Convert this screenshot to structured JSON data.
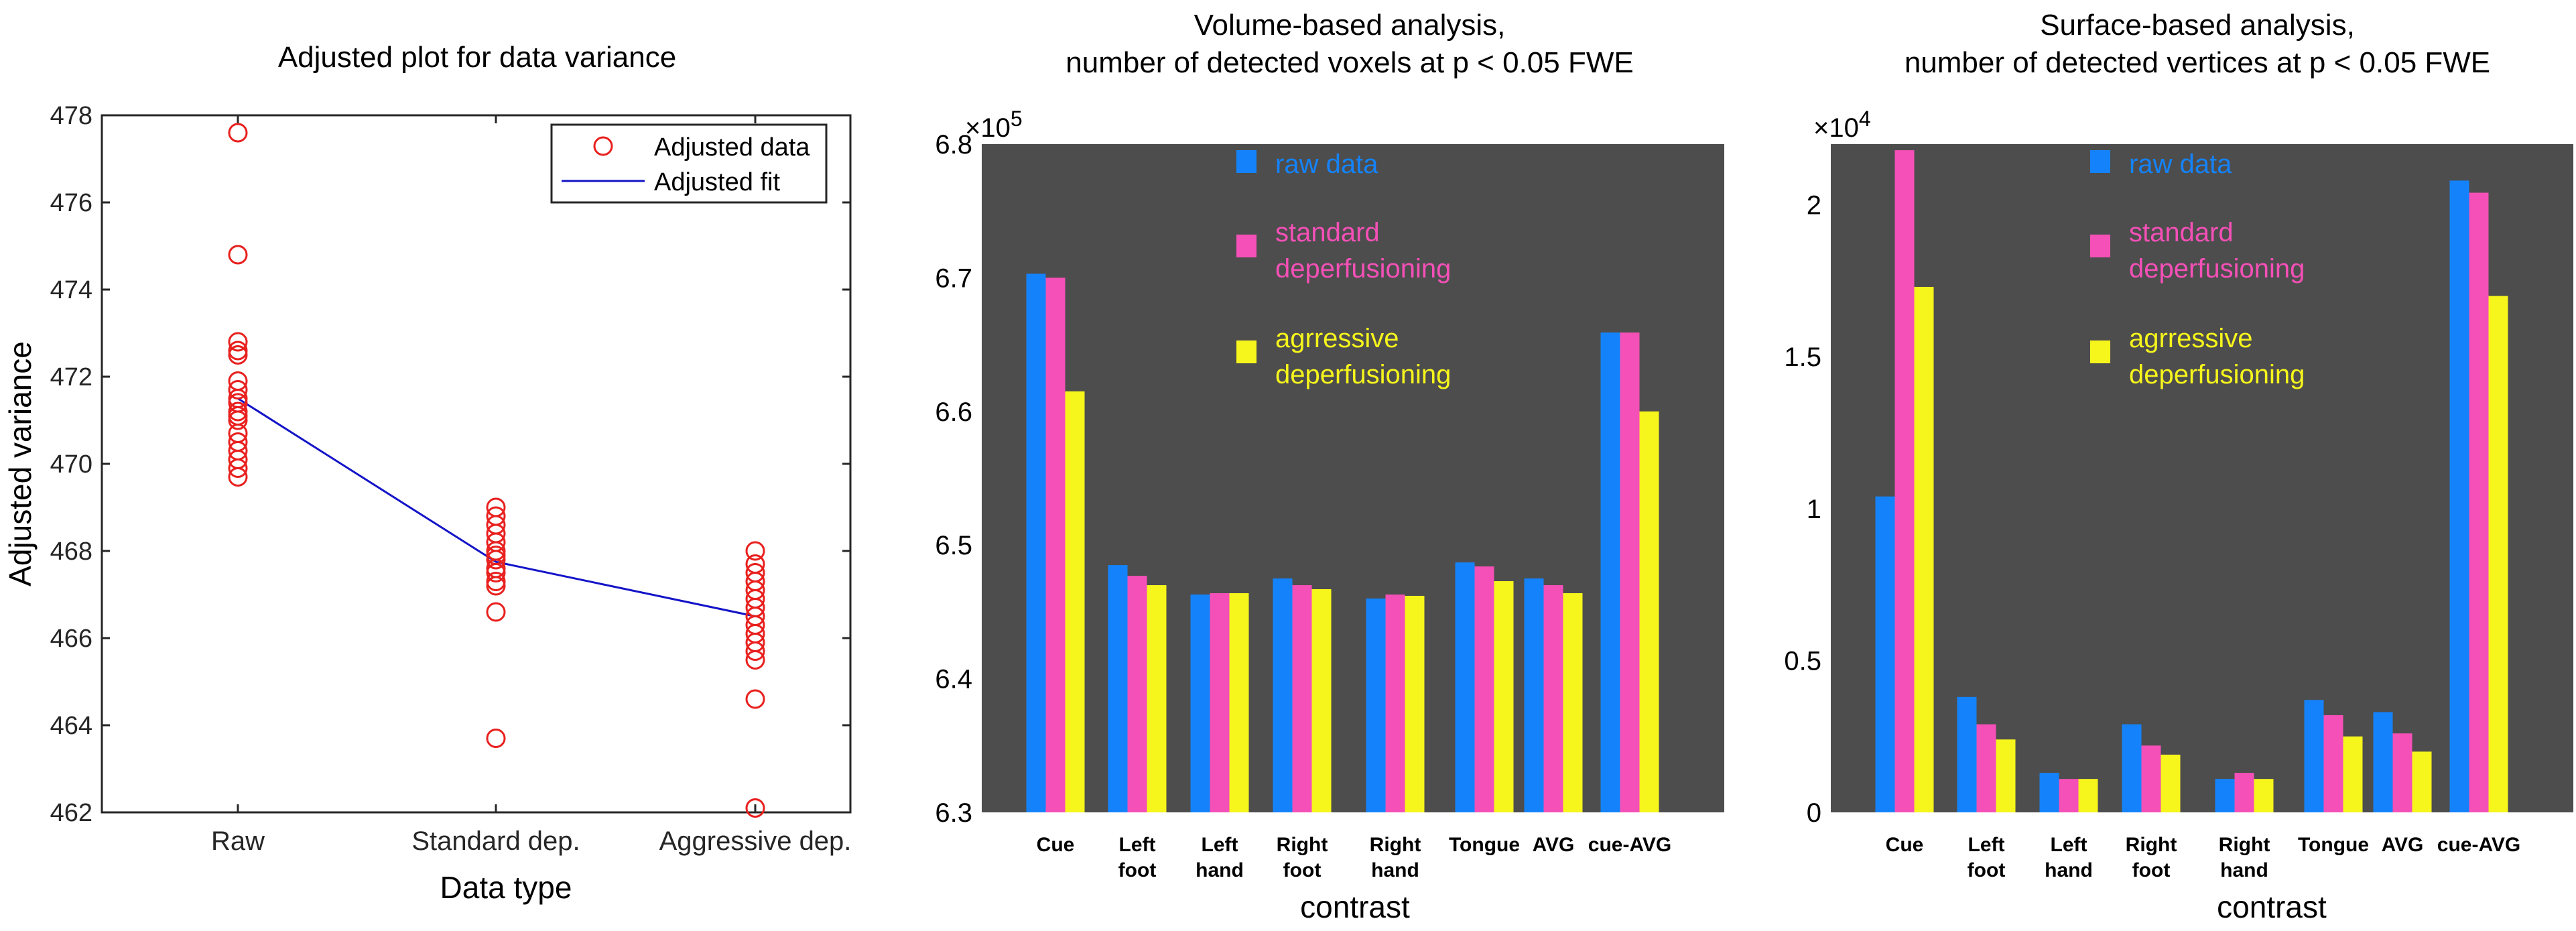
{
  "chart_data": [
    {
      "type": "scatter",
      "title": "Adjusted plot for data variance",
      "xlabel": "Data type",
      "ylabel": "Adjusted variance",
      "categories": [
        "Raw",
        "Standard dep.",
        "Aggressive dep."
      ],
      "ylim": [
        462,
        478
      ],
      "yticks": [
        462,
        464,
        466,
        468,
        470,
        472,
        474,
        476,
        478
      ],
      "series": [
        {
          "name": "Adjusted data",
          "points": {
            "Raw": [
              477.6,
              474.8,
              472.8,
              472.6,
              472.5,
              471.9,
              471.7,
              471.5,
              471.4,
              471.2,
              471.1,
              471.0,
              470.7,
              470.5,
              470.3,
              470.1,
              469.9,
              469.7
            ],
            "Standard dep.": [
              469.0,
              468.8,
              468.6,
              468.4,
              468.2,
              468.0,
              467.9,
              467.8,
              467.6,
              467.5,
              467.3,
              467.2,
              466.6,
              463.7
            ],
            "Aggressive dep.": [
              468.0,
              467.7,
              467.5,
              467.3,
              467.1,
              466.9,
              466.7,
              466.5,
              466.3,
              466.1,
              465.9,
              465.7,
              465.5,
              464.6,
              462.1
            ]
          },
          "color": "#e8201e",
          "marker": "circle"
        },
        {
          "name": "Adjusted fit",
          "values": [
            471.5,
            467.75,
            466.5
          ],
          "color": "#1414c8"
        }
      ],
      "legend": "top-right"
    },
    {
      "type": "bar",
      "title_lines": [
        "Volume-based analysis,",
        "number of detected voxels at p < 0.05 FWE"
      ],
      "xlabel": "contrast",
      "ylabel": "",
      "exponent": "×10",
      "exponent_power": "5",
      "categories": [
        [
          "Cue"
        ],
        [
          "Left",
          "foot"
        ],
        [
          "Left",
          "hand"
        ],
        [
          "Right",
          "foot"
        ],
        [
          "Right",
          "hand"
        ],
        [
          "Tongue"
        ],
        [
          "AVG"
        ],
        [
          "cue-AVG"
        ]
      ],
      "ylim": [
        6.3,
        6.8
      ],
      "yticks": [
        "6.3",
        "6.4",
        "6.5",
        "6.6",
        "6.7",
        "6.8"
      ],
      "series": [
        {
          "name": "raw data",
          "values": [
            6.703,
            6.485,
            6.463,
            6.475,
            6.46,
            6.487,
            6.475,
            6.659
          ],
          "color": "#1483fb"
        },
        {
          "name_lines": [
            "standard",
            "deperfusioning"
          ],
          "values": [
            6.7,
            6.477,
            6.464,
            6.47,
            6.463,
            6.484,
            6.47,
            6.659
          ],
          "color": "#f550b7"
        },
        {
          "name_lines": [
            "agrressive",
            "deperfusioning"
          ],
          "values": [
            6.615,
            6.47,
            6.464,
            6.467,
            6.462,
            6.473,
            6.464,
            6.6
          ],
          "color": "#f6f51c"
        }
      ],
      "background": "#4d4d4d",
      "legend": "top-left"
    },
    {
      "type": "bar",
      "title_lines": [
        "Surface-based analysis,",
        "number of detected vertices at p < 0.05 FWE"
      ],
      "xlabel": "contrast",
      "ylabel": "",
      "exponent": "×10",
      "exponent_power": "4",
      "categories": [
        [
          "Cue"
        ],
        [
          "Left",
          "foot"
        ],
        [
          "Left",
          "hand"
        ],
        [
          "Right",
          "foot"
        ],
        [
          "Right",
          "hand"
        ],
        [
          "Tongue"
        ],
        [
          "AVG"
        ],
        [
          "cue-AVG"
        ]
      ],
      "ylim": [
        0,
        2.2
      ],
      "yticks": [
        "0",
        "0.5",
        "1",
        "1.5",
        "2"
      ],
      "series": [
        {
          "name": "raw data",
          "values": [
            1.04,
            0.38,
            0.13,
            0.29,
            0.11,
            0.37,
            0.33,
            2.08
          ],
          "color": "#1483fb"
        },
        {
          "name_lines": [
            "standard",
            "deperfusioning"
          ],
          "values": [
            2.18,
            0.29,
            0.11,
            0.22,
            0.13,
            0.32,
            0.26,
            2.04
          ],
          "color": "#f550b7"
        },
        {
          "name_lines": [
            "agrressive",
            "deperfusioning"
          ],
          "values": [
            1.73,
            0.24,
            0.11,
            0.19,
            0.11,
            0.25,
            0.2,
            1.7
          ],
          "color": "#f6f51c"
        }
      ],
      "background": "#4d4d4d",
      "legend": "top-left"
    }
  ]
}
